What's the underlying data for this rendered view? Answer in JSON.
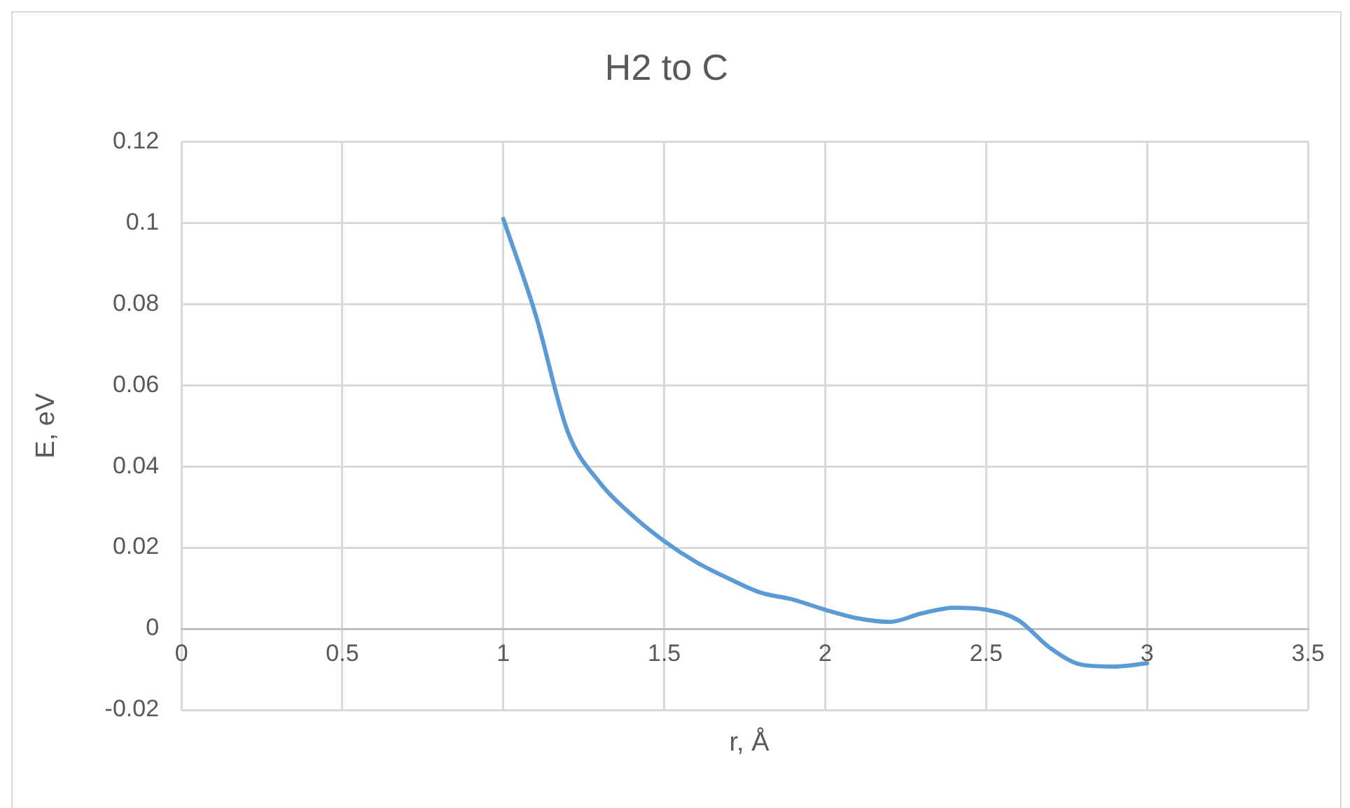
{
  "chart_data": {
    "type": "line",
    "title": "H2 to C",
    "xlabel": "r, Å",
    "ylabel": "E, eV",
    "xlim": [
      0,
      3.5
    ],
    "xticks": [
      0,
      0.5,
      1,
      1.5,
      2,
      2.5,
      3,
      3.5
    ],
    "ylim": [
      -0.02,
      0.12
    ],
    "yticks": [
      -0.02,
      0,
      0.02,
      0.04,
      0.06,
      0.08,
      0.1,
      0.12
    ],
    "grid": true,
    "legend": false,
    "marker": "none",
    "line_style": "solid",
    "series": [
      {
        "color": "#5b9bd5",
        "x": [
          1,
          1.1,
          1.2,
          1.3,
          1.4,
          1.5,
          1.6,
          1.7,
          1.8,
          1.9,
          2,
          2.1,
          2.2,
          2.3,
          2.4,
          2.5,
          2.6,
          2.7,
          2.8,
          2.9,
          3
        ],
        "values": [
          0.101,
          0.0775,
          0.0486,
          0.036,
          0.028,
          0.0216,
          0.0164,
          0.0124,
          0.0089,
          0.0072,
          0.0047,
          0.0026,
          0.0017,
          0.0038,
          0.0052,
          0.0047,
          0.0021,
          -0.0048,
          -0.0089,
          -0.0093,
          -0.0085
        ]
      }
    ]
  }
}
